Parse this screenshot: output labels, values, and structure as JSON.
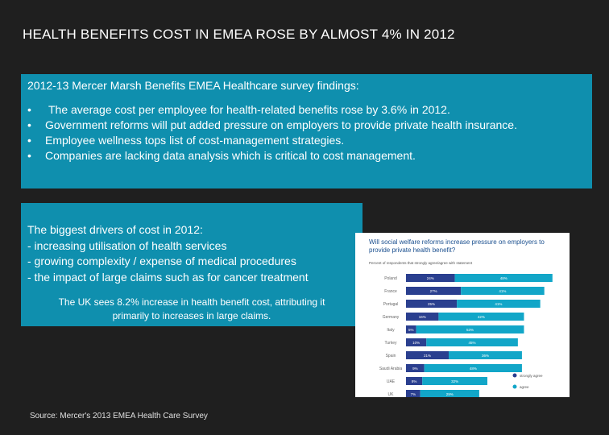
{
  "slide": {
    "title": "HEALTH BENEFITS COST IN EMEA ROSE BY ALMOST 4% IN 2012",
    "source": "Source: Mercer's 2013 EMEA Health Care Survey"
  },
  "findings": {
    "heading": "2012-13 Mercer Marsh Benefits EMEA Healthcare survey findings:",
    "items": [
      "The average cost per employee for health-related benefits rose by 3.6% in 2012.",
      "Government reforms will put added pressure on employers to provide private health insurance.",
      "Employee wellness tops list of cost-management strategies.",
      "Companies are lacking data analysis which is critical to cost management."
    ]
  },
  "drivers": {
    "lines": [
      "The biggest drivers of cost in 2012:",
      "- increasing utilisation of health services",
      "- growing complexity / expense of medical procedures",
      "- the impact of  large claims such as for cancer treatment"
    ],
    "uk_note_line1": "The UK sees 8.2% increase in health benefit cost, attributing it",
    "uk_note_line2": "primarily to increases in large claims."
  },
  "colors": {
    "strongly_agree": "#2a3f8f",
    "agree": "#12a6c8",
    "panel_bg": "#0f8fae"
  },
  "chart_data": {
    "type": "bar",
    "stacked": true,
    "orientation": "horizontal",
    "title_line1": "Will social welfare reforms increase pressure on employers to",
    "title_line2": "provide private health benefit?",
    "subtitle": "Percent of respondents that strongly agree/agree with statement",
    "categories": [
      "Poland",
      "France",
      "Portugal",
      "Germany",
      "Italy",
      "Turkey",
      "Spain",
      "Saudi Arabia",
      "UAE",
      "UK"
    ],
    "series": [
      {
        "name": "strongly agree",
        "values": [
          24,
          27,
          25,
          16,
          5,
          10,
          21,
          9,
          8,
          7
        ]
      },
      {
        "name": "agree",
        "values": [
          48,
          41,
          41,
          42,
          53,
          45,
          36,
          48,
          32,
          29
        ]
      }
    ],
    "xlim": [
      0,
      80
    ],
    "legend_position": "bottom-right"
  }
}
